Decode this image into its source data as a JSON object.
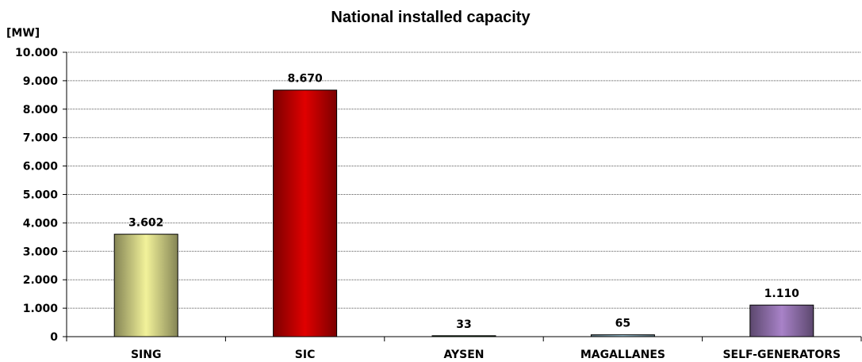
{
  "chart_data": {
    "type": "bar",
    "title": "National installed capacity",
    "ylabel": "[MW]",
    "xlabel": "",
    "categories": [
      "SING",
      "SIC",
      "AYSEN",
      "MAGALLANES",
      "SELF-GENERATORS"
    ],
    "values": [
      3602,
      8670,
      33,
      65,
      1110
    ],
    "value_labels": [
      "3.602",
      "8.670",
      "33",
      "65",
      "1.110"
    ],
    "ylim": [
      0,
      10000
    ],
    "yticks": [
      0,
      1000,
      2000,
      3000,
      4000,
      5000,
      6000,
      7000,
      8000,
      9000,
      10000
    ],
    "ytick_labels": [
      "0",
      "1.000",
      "2.000",
      "3.000",
      "4.000",
      "5.000",
      "6.000",
      "7.000",
      "8.000",
      "9.000",
      "10.000"
    ],
    "grid": true,
    "legend": "none",
    "colors": [
      "#f2f29a",
      "#e00000",
      "#1f7a1f",
      "#a8d4e6",
      "#a882c8"
    ]
  }
}
